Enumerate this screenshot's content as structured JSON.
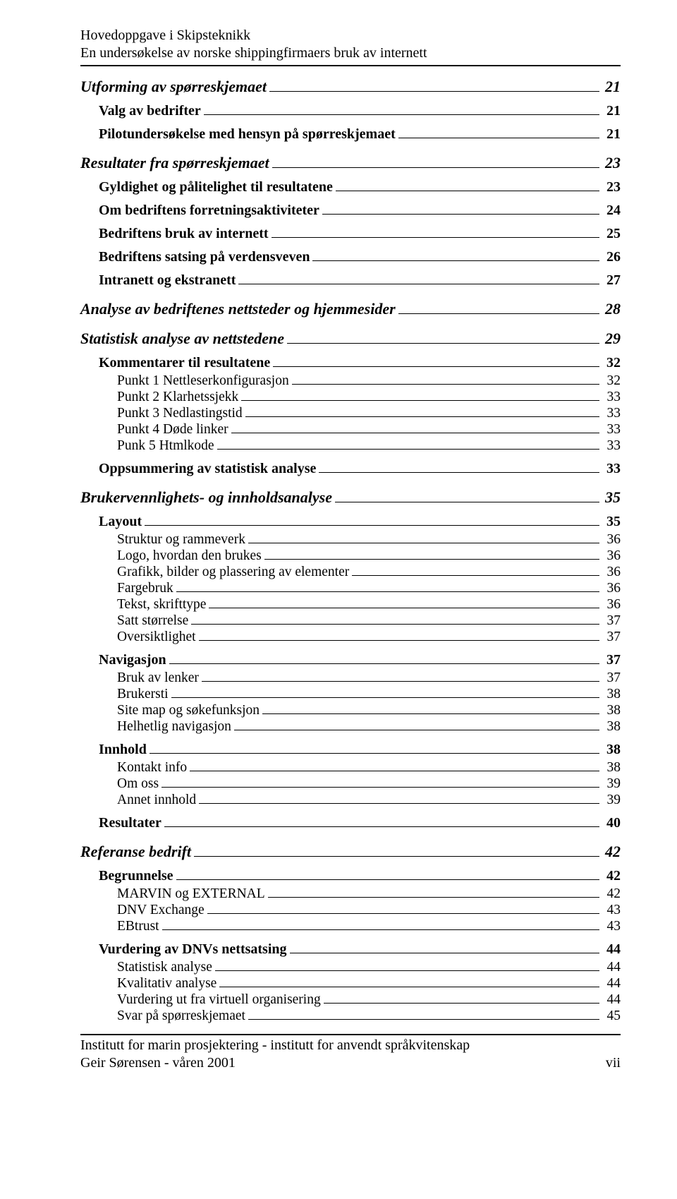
{
  "header": {
    "line1": "Hovedoppgave i Skipsteknikk",
    "line2": "En undersøkelse av norske shippingfirmaers bruk av internett"
  },
  "footer": {
    "line1": "Institutt for marin prosjektering - institutt for anvendt språkvitenskap",
    "line2": "Geir Sørensen - våren 2001",
    "pagenum": "vii"
  },
  "toc": [
    {
      "level": 1,
      "label": "Utforming av spørreskjemaet",
      "page": "21"
    },
    {
      "level": 2,
      "label": "Valg av bedrifter",
      "page": "21"
    },
    {
      "level": 2,
      "label": "Pilotundersøkelse med hensyn på spørreskjemaet",
      "page": "21"
    },
    {
      "level": 1,
      "label": "Resultater fra spørreskjemaet",
      "page": "23"
    },
    {
      "level": 2,
      "label": "Gyldighet og pålitelighet til resultatene",
      "page": "23"
    },
    {
      "level": 2,
      "label": "Om bedriftens forretningsaktiviteter",
      "page": "24"
    },
    {
      "level": 2,
      "label": "Bedriftens bruk av internett",
      "page": "25"
    },
    {
      "level": 2,
      "label": "Bedriftens satsing på verdensveven",
      "page": "26"
    },
    {
      "level": 2,
      "label": "Intranett og ekstranett",
      "page": "27"
    },
    {
      "level": 1,
      "label": "Analyse av bedriftenes nettsteder og hjemmesider",
      "page": "28"
    },
    {
      "level": 1,
      "label": "Statistisk analyse av nettstedene",
      "page": "29"
    },
    {
      "level": 2,
      "label": "Kommentarer til resultatene",
      "page": "32"
    },
    {
      "level": 3,
      "label": "Punkt 1 Nettleserkonfigurasjon",
      "page": "32"
    },
    {
      "level": 3,
      "label": "Punkt 2 Klarhetssjekk",
      "page": "33"
    },
    {
      "level": 3,
      "label": "Punkt 3 Nedlastingstid",
      "page": "33"
    },
    {
      "level": 3,
      "label": "Punkt 4 Døde linker",
      "page": "33"
    },
    {
      "level": 3,
      "label": "Punk 5 Htmlkode",
      "page": "33"
    },
    {
      "level": 2,
      "label": "Oppsummering av statistisk analyse",
      "page": "33"
    },
    {
      "level": 1,
      "label": "Brukervennlighets- og innholdsanalyse",
      "page": "35"
    },
    {
      "level": 2,
      "label": "Layout",
      "page": "35"
    },
    {
      "level": 3,
      "label": "Struktur og rammeverk",
      "page": "36"
    },
    {
      "level": 3,
      "label": "Logo, hvordan den brukes",
      "page": "36"
    },
    {
      "level": 3,
      "label": "Grafikk, bilder og plassering av elementer",
      "page": "36"
    },
    {
      "level": 3,
      "label": "Fargebruk",
      "page": "36"
    },
    {
      "level": 3,
      "label": "Tekst, skrifttype",
      "page": "36"
    },
    {
      "level": 3,
      "label": "Satt størrelse",
      "page": "37"
    },
    {
      "level": 3,
      "label": "Oversiktlighet",
      "page": "37"
    },
    {
      "level": 2,
      "label": "Navigasjon",
      "page": "37"
    },
    {
      "level": 3,
      "label": "Bruk av lenker",
      "page": "37"
    },
    {
      "level": 3,
      "label": "Brukersti",
      "page": "38"
    },
    {
      "level": 3,
      "label": "Site map og søkefunksjon",
      "page": "38"
    },
    {
      "level": 3,
      "label": "Helhetlig navigasjon",
      "page": "38"
    },
    {
      "level": 2,
      "label": "Innhold",
      "page": "38"
    },
    {
      "level": 3,
      "label": "Kontakt info",
      "page": "38"
    },
    {
      "level": 3,
      "label": "Om oss",
      "page": "39"
    },
    {
      "level": 3,
      "label": "Annet innhold",
      "page": "39"
    },
    {
      "level": 2,
      "label": "Resultater",
      "page": "40"
    },
    {
      "level": 1,
      "label": "Referanse bedrift",
      "page": "42"
    },
    {
      "level": 2,
      "label": "Begrunnelse",
      "page": "42"
    },
    {
      "level": 3,
      "label": "MARVIN og EXTERNAL",
      "page": "42"
    },
    {
      "level": 3,
      "label": "DNV Exchange",
      "page": "43"
    },
    {
      "level": 3,
      "label": "EBtrust",
      "page": "43"
    },
    {
      "level": 2,
      "label": "Vurdering av DNVs nettsatsing",
      "page": "44"
    },
    {
      "level": 3,
      "label": "Statistisk analyse",
      "page": "44"
    },
    {
      "level": 3,
      "label": "Kvalitativ analyse",
      "page": "44"
    },
    {
      "level": 3,
      "label": "Vurdering ut fra virtuell organisering",
      "page": "44"
    },
    {
      "level": 3,
      "label": "Svar på spørreskjemaet",
      "page": "45"
    }
  ]
}
